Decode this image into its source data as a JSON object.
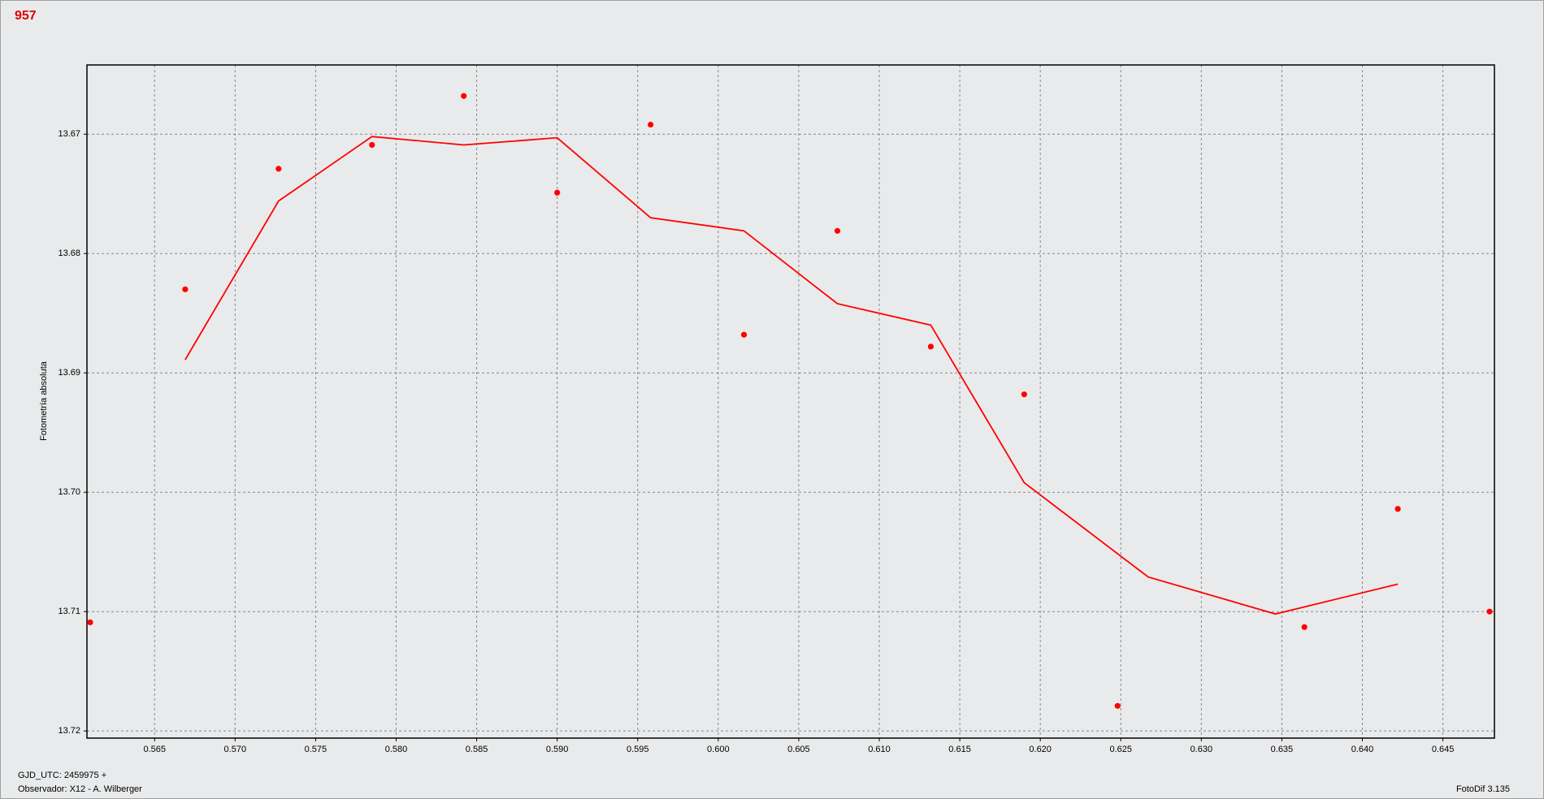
{
  "chart_data": {
    "type": "scatter",
    "title": "957",
    "y_label": "Fotometría absoluta",
    "footer": {
      "left": [
        "GJD_UTC: 2459975 +",
        "Observador: X12 - A. Wilberger"
      ],
      "right": "FotoDif 3.135"
    },
    "xlim": [
      0.5608,
      0.6482
    ],
    "ylim": [
      13.7206,
      13.6642
    ],
    "grid": true,
    "xticks": [
      0.565,
      {
        "value": 0.57,
        "label": "0.570"
      },
      0.575,
      {
        "value": 0.58,
        "label": "0.580"
      },
      0.585,
      {
        "value": 0.59,
        "label": "0.590"
      },
      0.595,
      {
        "value": 0.6,
        "label": "0.600"
      },
      0.605,
      {
        "value": 0.61,
        "label": "0.610"
      },
      0.615,
      {
        "value": 0.62,
        "label": "0.620"
      },
      0.625,
      {
        "value": 0.63,
        "label": "0.630"
      },
      0.635,
      {
        "value": 0.64,
        "label": "0.640"
      },
      0.645
    ],
    "yticks": [
      13.67,
      13.68,
      13.69,
      {
        "value": 13.7,
        "label": "13.70"
      },
      13.71,
      13.72
    ],
    "series": [
      {
        "mode": "markers",
        "color": "#ff0000",
        "x": [
          0.561,
          0.5669,
          0.5727,
          0.5785,
          0.5842,
          0.59,
          0.5958,
          0.6016,
          0.6074,
          0.6132,
          0.619,
          0.6248,
          0.6364,
          0.6422,
          0.6479
        ],
        "values": [
          13.7109,
          13.683,
          13.6729,
          13.6709,
          13.6668,
          13.6749,
          13.6692,
          13.6868,
          13.6781,
          13.6878,
          13.6918,
          13.7179,
          13.7113,
          13.7014,
          13.71
        ]
      },
      {
        "mode": "lines",
        "color": "#ff0000",
        "x": [
          0.5669,
          0.5727,
          0.5785,
          0.5842,
          0.59,
          0.5958,
          0.6016,
          0.6074,
          0.6132,
          0.619,
          0.6267,
          0.6346,
          0.6422
        ],
        "values": [
          13.6889,
          13.6756,
          13.6702,
          13.6709,
          13.6703,
          13.677,
          13.6781,
          13.6842,
          13.686,
          13.6992,
          13.7071,
          13.7102,
          13.7077
        ]
      }
    ]
  }
}
